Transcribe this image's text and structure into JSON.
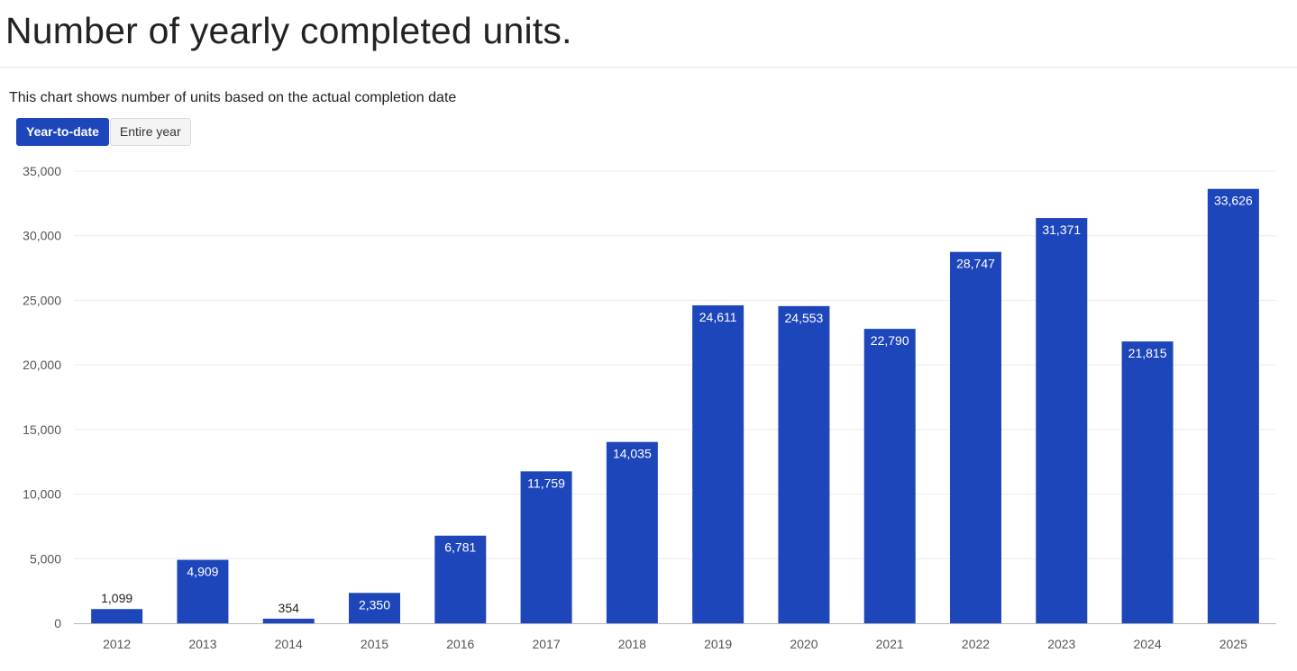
{
  "page": {
    "title": "Number of yearly completed units.",
    "description": "This chart shows number of units based on the actual completion date"
  },
  "toggle": {
    "options": [
      "Year-to-date",
      "Entire year"
    ],
    "selected": "Year-to-date"
  },
  "colors": {
    "bar": "#1e46bb",
    "accent": "#1e46bb",
    "grid": "#ececec",
    "axis": "#b5b5b5"
  },
  "chart_data": {
    "type": "bar",
    "categories": [
      "2012",
      "2013",
      "2014",
      "2015",
      "2016",
      "2017",
      "2018",
      "2019",
      "2020",
      "2021",
      "2022",
      "2023",
      "2024",
      "2025"
    ],
    "values": [
      1099,
      4909,
      354,
      2350,
      6781,
      11759,
      14035,
      24611,
      24553,
      22790,
      28747,
      31371,
      21815,
      33626
    ],
    "value_labels": [
      "1,099",
      "4,909",
      "354",
      "2,350",
      "6,781",
      "11,759",
      "14,035",
      "24,611",
      "24,553",
      "22,790",
      "28,747",
      "31,371",
      "21,815",
      "33,626"
    ],
    "ylim": [
      0,
      35000
    ],
    "yticks": [
      0,
      5000,
      10000,
      15000,
      20000,
      25000,
      30000,
      35000
    ],
    "ytick_labels": [
      "0",
      "5,000",
      "10,000",
      "15,000",
      "20,000",
      "25,000",
      "30,000",
      "35,000"
    ],
    "grid": true,
    "legend": "none",
    "xlabel": "",
    "ylabel": ""
  }
}
